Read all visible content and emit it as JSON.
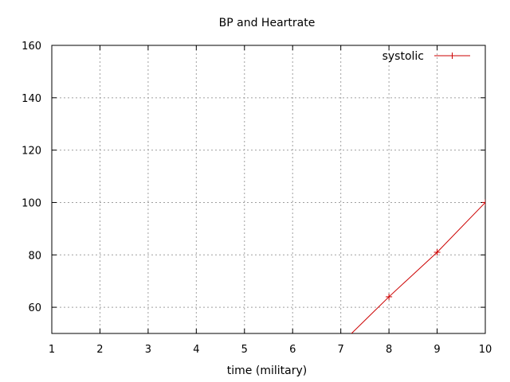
{
  "chart_data": {
    "type": "line",
    "title": "BP and Heartrate",
    "xlabel": "time (military)",
    "ylabel": "",
    "xlim": [
      1,
      10
    ],
    "ylim": [
      50,
      160
    ],
    "x_ticks": [
      "1",
      "2",
      "3",
      "4",
      "5",
      "6",
      "7",
      "8",
      "9",
      "10"
    ],
    "y_ticks": [
      "60",
      "80",
      "100",
      "120",
      "140",
      "160"
    ],
    "grid": true,
    "legend_position": "top-right",
    "series": [
      {
        "name": "systolic",
        "color": "#cc0000",
        "marker": "plus",
        "x": [
          7,
          8,
          9,
          10
        ],
        "y": [
          46,
          64,
          81,
          100
        ]
      }
    ]
  }
}
